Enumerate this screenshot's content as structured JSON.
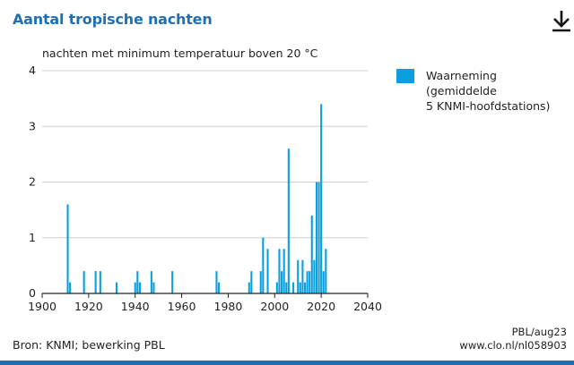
{
  "header": {
    "title": "Aantal tropische nachten",
    "download_icon": "download-icon"
  },
  "chart_data": {
    "type": "bar",
    "ylabel": "nachten met minimum temperatuur boven 20 °C",
    "xlabel": "",
    "xlim": [
      1900,
      2040
    ],
    "ylim": [
      0,
      4
    ],
    "x_ticks": [
      1900,
      1920,
      1940,
      1960,
      1980,
      2000,
      2020,
      2040
    ],
    "y_ticks": [
      0,
      1,
      2,
      3,
      4
    ],
    "grid": "horizontal",
    "legend_position": "right",
    "series": [
      {
        "name": "Waarneming (gemiddelde 5 KNMI-hoofdstations)",
        "color": "#0aa0e0",
        "x": [
          1911,
          1912,
          1918,
          1923,
          1925,
          1932,
          1940,
          1941,
          1942,
          1947,
          1948,
          1956,
          1975,
          1976,
          1989,
          1990,
          1994,
          1995,
          1997,
          2001,
          2002,
          2003,
          2004,
          2005,
          2006,
          2008,
          2010,
          2011,
          2012,
          2013,
          2014,
          2015,
          2016,
          2017,
          2018,
          2019,
          2020,
          2021,
          2022
        ],
        "values": [
          1.6,
          0.2,
          0.4,
          0.4,
          0.4,
          0.2,
          0.2,
          0.4,
          0.2,
          0.4,
          0.2,
          0.4,
          0.4,
          0.2,
          0.2,
          0.4,
          0.4,
          1.0,
          0.8,
          0.2,
          0.8,
          0.4,
          0.8,
          0.2,
          2.6,
          0.2,
          0.6,
          0.2,
          0.6,
          0.2,
          0.4,
          0.4,
          1.4,
          0.6,
          2.0,
          2.0,
          3.4,
          0.4,
          0.8
        ]
      }
    ]
  },
  "legend": {
    "label_line1": "Waarneming (gemiddelde",
    "label_line2": "5 KNMI-hoofdstations)"
  },
  "footer": {
    "source": "Bron: KNMI; bewerking PBL",
    "date": "PBL/aug23",
    "url": "www.clo.nl/nl058903"
  }
}
